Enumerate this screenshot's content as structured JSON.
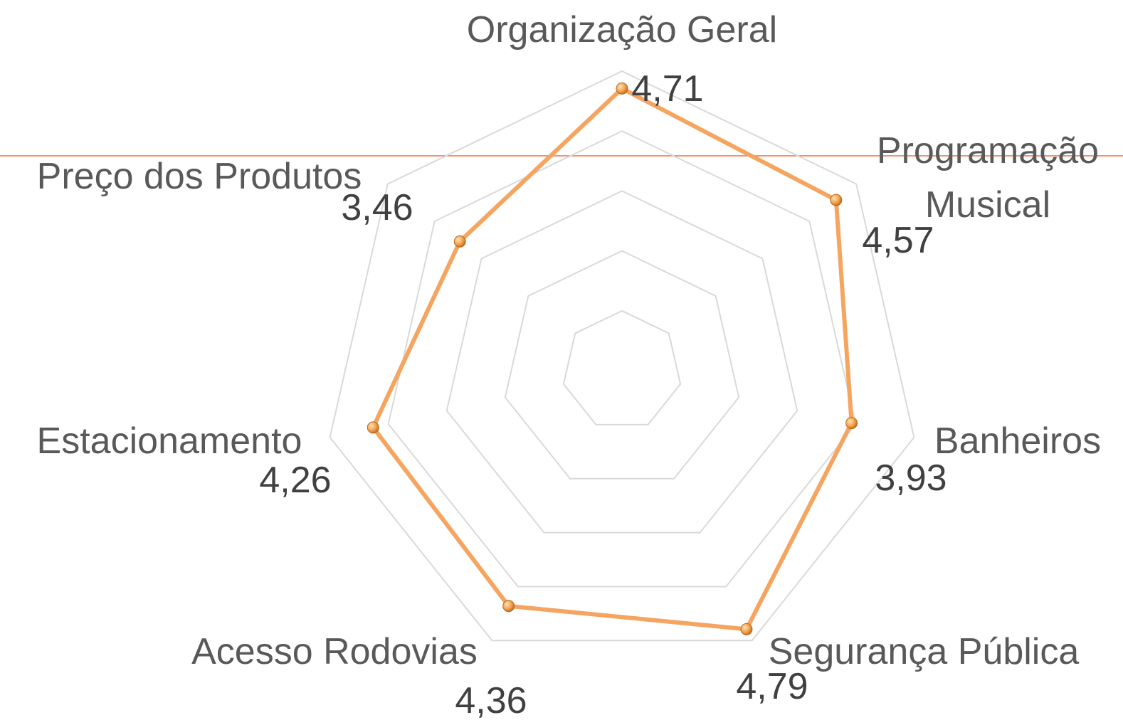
{
  "chart_data": {
    "type": "radar",
    "categories": [
      "Organização Geral",
      "Programação Musical",
      "Banheiros",
      "Segurança Pública",
      "Acesso Rodovias",
      "Estacionamento",
      "Preço dos Produtos"
    ],
    "values": [
      4.71,
      4.57,
      3.93,
      4.79,
      4.36,
      4.26,
      3.46
    ],
    "value_labels": [
      "4,71",
      "4,57",
      "3,93",
      "4,79",
      "4,36",
      "4,26",
      "3,46"
    ],
    "color": "#f5a560",
    "rlim": [
      0,
      5
    ],
    "rticks": [
      1,
      2,
      3,
      4,
      5
    ],
    "grid": true
  }
}
